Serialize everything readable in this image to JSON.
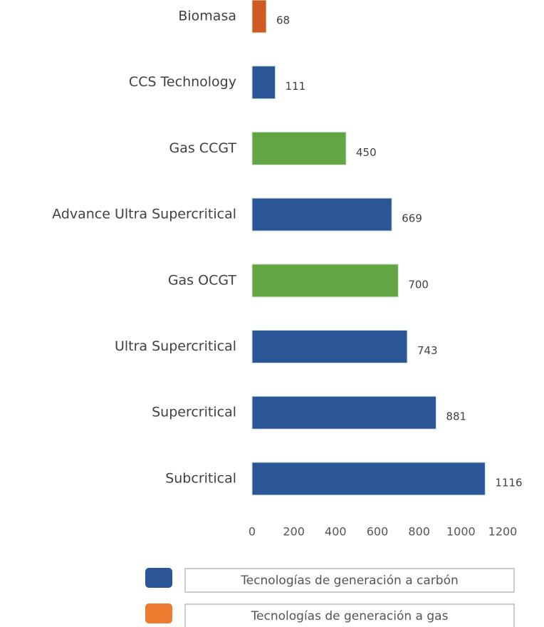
{
  "chart_data": {
    "type": "bar",
    "orientation": "horizontal",
    "categories": [
      "Biomasa",
      "CCS Technology",
      "Gas CCGT",
      "Advance Ultra Supercritical",
      "Gas OCGT",
      "Ultra Supercritical",
      "Supercritical",
      "Subcritical"
    ],
    "values": [
      68,
      111,
      450,
      669,
      700,
      743,
      881,
      1116
    ],
    "colors": [
      "#d05a23",
      "#2a5597",
      "#62a543",
      "#2a5597",
      "#62a543",
      "#2a5597",
      "#2a5597",
      "#2a5597"
    ],
    "xlim": [
      0,
      1200
    ],
    "xticks": [
      0,
      200,
      400,
      600,
      800,
      1000,
      1200
    ],
    "legend": [
      {
        "name": "Tecnologías de generación a carbón",
        "color": "#2a5597"
      },
      {
        "name": "Tecnologías de generación a gas",
        "color": "#ee7b30"
      }
    ]
  }
}
